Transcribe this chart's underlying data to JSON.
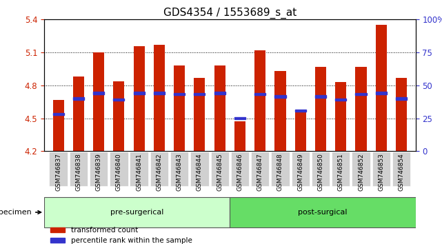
{
  "title": "GDS4354 / 1553689_s_at",
  "samples": [
    "GSM746837",
    "GSM746838",
    "GSM746839",
    "GSM746840",
    "GSM746841",
    "GSM746842",
    "GSM746843",
    "GSM746844",
    "GSM746845",
    "GSM746846",
    "GSM746847",
    "GSM746848",
    "GSM746849",
    "GSM746850",
    "GSM746851",
    "GSM746852",
    "GSM746853",
    "GSM746854"
  ],
  "bar_values": [
    4.67,
    4.88,
    5.1,
    4.84,
    5.16,
    5.17,
    4.98,
    4.87,
    4.98,
    4.47,
    5.12,
    4.93,
    4.57,
    4.97,
    4.83,
    4.97,
    5.35,
    4.87
  ],
  "blue_positions": [
    4.54,
    4.68,
    4.73,
    4.67,
    4.73,
    4.73,
    4.72,
    4.72,
    4.73,
    4.5,
    4.72,
    4.7,
    4.57,
    4.7,
    4.67,
    4.72,
    4.73,
    4.68
  ],
  "ymin": 4.2,
  "ymax": 5.4,
  "bar_color": "#cc2200",
  "blue_color": "#3333cc",
  "pre_surgical_count": 9,
  "post_surgical_count": 9,
  "group_colors": [
    "#ccffcc",
    "#66dd66"
  ],
  "xlabel": "specimen",
  "ylabel_left": "",
  "ylabel_right": "",
  "background_color": "#ffffff",
  "plot_bg": "#ffffff",
  "tick_label_bg": "#cccccc",
  "grid_color": "#000000",
  "title_fontsize": 11,
  "tick_fontsize": 7.5,
  "bar_width": 0.55,
  "right_yticks": [
    0,
    25,
    50,
    75,
    100
  ],
  "right_ylabels": [
    "0",
    "25",
    "50",
    "75",
    "100%"
  ]
}
